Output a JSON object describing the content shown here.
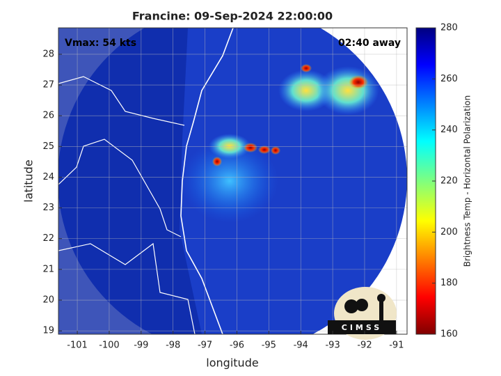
{
  "chart_data": {
    "type": "map",
    "title": "Francine: 09-Sep-2024 22:00:00",
    "annotations": [
      "Vmax: 54 kts",
      "02:40 away"
    ],
    "x_label": "longitude",
    "y_label": "latitude",
    "xlim": [
      -101.59,
      -90.67
    ],
    "xticks": [
      -101,
      -100,
      -99,
      -98,
      -97,
      -96,
      -95,
      -94,
      -93,
      -92,
      -91
    ],
    "ylim": [
      18.89,
      28.86
    ],
    "yticks": [
      19,
      20,
      21,
      22,
      23,
      24,
      25,
      26,
      27,
      28
    ],
    "grid": true,
    "colorbar": {
      "label": "Brightness Temp - Horizontal Polarization",
      "lim": [
        160,
        280
      ],
      "ticks": [
        160,
        180,
        200,
        220,
        240,
        260,
        280
      ]
    },
    "logo": "CIMSS"
  }
}
